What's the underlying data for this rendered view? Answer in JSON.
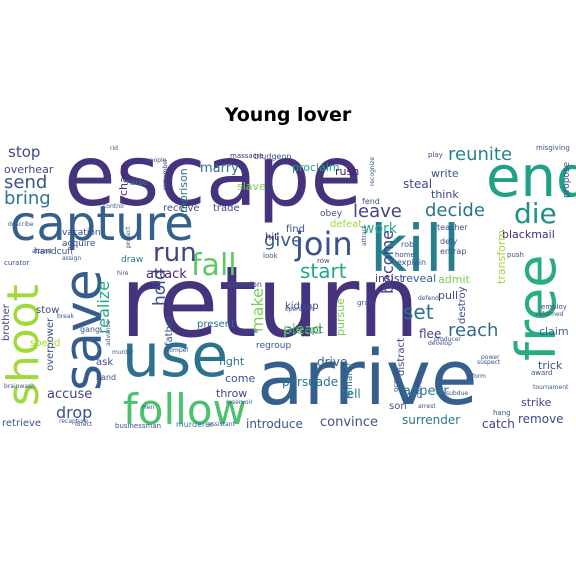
{
  "title": "Young lover",
  "words": [
    {
      "text": "escape",
      "color": "#46337e"
    },
    {
      "text": "return",
      "color": "#46337e"
    },
    {
      "text": "arrive",
      "color": "#355f8d"
    },
    {
      "text": "capture",
      "color": "#355f8d"
    },
    {
      "text": "kill",
      "color": "#277f8e"
    },
    {
      "text": "end",
      "color": "#1fa187"
    },
    {
      "text": "use",
      "color": "#2c728e"
    },
    {
      "text": "follow",
      "color": "#4ac16d"
    },
    {
      "text": "save",
      "color": "#365c8d"
    },
    {
      "text": "shoot",
      "color": "#9fda3a"
    },
    {
      "text": "free",
      "color": "#27ad81"
    },
    {
      "text": "die",
      "color": "#21918c"
    },
    {
      "text": "join",
      "color": "#3b528b"
    },
    {
      "text": "fall",
      "color": "#5ec962"
    },
    {
      "text": "run",
      "color": "#414487"
    },
    {
      "text": "reunite",
      "color": "#26828e"
    },
    {
      "text": "decide",
      "color": "#2c728e"
    },
    {
      "text": "send",
      "color": "#3b528b"
    },
    {
      "text": "bring",
      "color": "#2a788e"
    },
    {
      "text": "stop",
      "color": "#3e4989"
    },
    {
      "text": "start",
      "color": "#22a884"
    },
    {
      "text": "give",
      "color": "#355f8d"
    },
    {
      "text": "leave",
      "color": "#414487"
    },
    {
      "text": "set",
      "color": "#2c728e"
    },
    {
      "text": "work",
      "color": "#27ad81"
    },
    {
      "text": "become",
      "color": "#414487"
    },
    {
      "text": "reach",
      "color": "#2f6c8e"
    },
    {
      "text": "hold",
      "color": "#3b528b"
    },
    {
      "text": "make",
      "color": "#7ad151"
    },
    {
      "text": "realize",
      "color": "#22a884"
    },
    {
      "text": "drop",
      "color": "#3b528b"
    },
    {
      "text": "accuse",
      "color": "#414487"
    },
    {
      "text": "marry",
      "color": "#2c728e"
    },
    {
      "text": "attack",
      "color": "#482878"
    },
    {
      "text": "plead",
      "color": "#7ad151"
    },
    {
      "text": "appear",
      "color": "#2a788e"
    },
    {
      "text": "convince",
      "color": "#3b528b"
    },
    {
      "text": "surrender",
      "color": "#2a788e"
    },
    {
      "text": "catch",
      "color": "#414487"
    },
    {
      "text": "remove",
      "color": "#3e4989"
    },
    {
      "text": "introduce",
      "color": "#3b528b"
    },
    {
      "text": "persuade",
      "color": "#2c728e"
    },
    {
      "text": "drive",
      "color": "#355f8d"
    },
    {
      "text": "tell",
      "color": "#2a788e"
    },
    {
      "text": "flee",
      "color": "#414487"
    },
    {
      "text": "steal",
      "color": "#3e4989"
    },
    {
      "text": "blackmail",
      "color": "#482878"
    },
    {
      "text": "overhear",
      "color": "#3e4989"
    },
    {
      "text": "chase",
      "color": "#482878"
    },
    {
      "text": "imprison",
      "color": "#2c728e"
    },
    {
      "text": "slave",
      "color": "#7ad151"
    },
    {
      "text": "proclaim",
      "color": "#22a884"
    },
    {
      "text": "rush",
      "color": "#481b6d"
    },
    {
      "text": "write",
      "color": "#3b528b"
    },
    {
      "text": "think",
      "color": "#414487"
    },
    {
      "text": "propose",
      "color": "#3b528b"
    },
    {
      "text": "fight",
      "color": "#2c728e"
    },
    {
      "text": "throw",
      "color": "#3e4989"
    },
    {
      "text": "come",
      "color": "#3b528b"
    },
    {
      "text": "accept",
      "color": "#2a788e"
    },
    {
      "text": "insist",
      "color": "#414487"
    },
    {
      "text": "reveal",
      "color": "#355f8d"
    },
    {
      "text": "admit",
      "color": "#7ad151"
    },
    {
      "text": "pull",
      "color": "#414487"
    },
    {
      "text": "transform",
      "color": "#9fda3a"
    },
    {
      "text": "destroy",
      "color": "#3e4989"
    },
    {
      "text": "trick",
      "color": "#3b528b"
    },
    {
      "text": "strike",
      "color": "#414487"
    },
    {
      "text": "claim",
      "color": "#355f8d"
    },
    {
      "text": "distract",
      "color": "#3e4989"
    },
    {
      "text": "pursue",
      "color": "#7ad151"
    },
    {
      "text": "kidnap",
      "color": "#3e4989"
    },
    {
      "text": "hit",
      "color": "#481b6d"
    },
    {
      "text": "find",
      "color": "#3b528b"
    },
    {
      "text": "defeat",
      "color": "#9fda3a"
    },
    {
      "text": "obey",
      "color": "#3b528b"
    },
    {
      "text": "receive",
      "color": "#3b528b"
    },
    {
      "text": "trade",
      "color": "#3e4989"
    },
    {
      "text": "present",
      "color": "#2c728e"
    },
    {
      "text": "ask",
      "color": "#3e4989"
    },
    {
      "text": "father",
      "color": "#3b528b"
    },
    {
      "text": "spend",
      "color": "#9fda3a"
    },
    {
      "text": "retrieve",
      "color": "#3b528b"
    },
    {
      "text": "son",
      "color": "#3b528b"
    },
    {
      "text": "overpower",
      "color": "#3b528b"
    },
    {
      "text": "stow",
      "color": "#414487"
    },
    {
      "text": "brother",
      "color": "#414487"
    },
    {
      "text": "regroup",
      "color": "#3b528b"
    },
    {
      "text": "remarry",
      "color": "#2a788e"
    },
    {
      "text": "acquire",
      "color": "#3e4989"
    },
    {
      "text": "draw",
      "color": "#2a788e"
    },
    {
      "text": "raise",
      "color": "#2a788e"
    },
    {
      "text": "handcuff",
      "color": "#3b528b"
    },
    {
      "text": "vacation",
      "color": "#3e4989"
    },
    {
      "text": "murderer",
      "color": "#2a788e"
    },
    {
      "text": "abandon",
      "color": "#3b528b"
    },
    {
      "text": "gang",
      "color": "#3b528b"
    },
    {
      "text": "hand",
      "color": "#3b528b"
    },
    {
      "text": "businessman",
      "color": "#3b528b"
    },
    {
      "text": "bludgeon",
      "color": "#3b528b"
    },
    {
      "text": "massacre",
      "color": "#482878"
    },
    {
      "text": "misgiving",
      "color": "#3b528b"
    },
    {
      "text": "play",
      "color": "#3b528b"
    },
    {
      "text": "fend",
      "color": "#3b528b"
    },
    {
      "text": "rob",
      "color": "#3b528b"
    },
    {
      "text": "explain",
      "color": "#3b528b"
    },
    {
      "text": "teacher",
      "color": "#3b528b"
    },
    {
      "text": "defy",
      "color": "#3b528b"
    },
    {
      "text": "entrap",
      "color": "#3b528b"
    },
    {
      "text": "push",
      "color": "#3b528b"
    },
    {
      "text": "home",
      "color": "#3b528b"
    },
    {
      "text": "occupy",
      "color": "#3b528b"
    },
    {
      "text": "comply",
      "color": "#3b528b"
    },
    {
      "text": "hang",
      "color": "#3b528b"
    },
    {
      "text": "award",
      "color": "#3b528b"
    },
    {
      "text": "employ",
      "color": "#3b528b"
    },
    {
      "text": "tournament",
      "color": "#3b528b"
    },
    {
      "text": "curator",
      "color": "#3b528b"
    },
    {
      "text": "people",
      "color": "#3b528b"
    },
    {
      "text": "rid",
      "color": "#3b528b"
    },
    {
      "text": "describe",
      "color": "#3b528b"
    },
    {
      "text": "attend",
      "color": "#3b528b"
    },
    {
      "text": "control",
      "color": "#3b528b"
    },
    {
      "text": "assign",
      "color": "#3b528b"
    },
    {
      "text": "row",
      "color": "#3b528b"
    },
    {
      "text": "look",
      "color": "#3b528b"
    },
    {
      "text": "grab",
      "color": "#3b528b"
    },
    {
      "text": "direct",
      "color": "#3b528b"
    },
    {
      "text": "recapture",
      "color": "#3b528b"
    },
    {
      "text": "assistant",
      "color": "#3b528b"
    },
    {
      "text": "arrest",
      "color": "#3b528b"
    },
    {
      "text": "subdue",
      "color": "#3b528b"
    },
    {
      "text": "suspect",
      "color": "#3b528b"
    },
    {
      "text": "form",
      "color": "#3b528b"
    },
    {
      "text": "producer",
      "color": "#3b528b"
    },
    {
      "text": "reformed",
      "color": "#3b528b"
    },
    {
      "text": "brainwash",
      "color": "#3b528b"
    },
    {
      "text": "compel",
      "color": "#3b528b"
    },
    {
      "text": "advance",
      "color": "#3b528b"
    },
    {
      "text": "operation",
      "color": "#3b528b"
    },
    {
      "text": "recognize",
      "color": "#3b528b"
    },
    {
      "text": "attract",
      "color": "#3b528b"
    },
    {
      "text": "protect",
      "color": "#3b528b"
    },
    {
      "text": "remember",
      "color": "#3b528b"
    },
    {
      "text": "develop",
      "color": "#3b528b"
    },
    {
      "text": "power",
      "color": "#3b528b"
    },
    {
      "text": "reservoir",
      "color": "#3b528b"
    },
    {
      "text": "men",
      "color": "#3b528b"
    },
    {
      "text": "break",
      "color": "#3b528b"
    },
    {
      "text": "hire",
      "color": "#3b528b"
    },
    {
      "text": "murder",
      "color": "#3b528b"
    },
    {
      "text": "create",
      "color": "#3b528b"
    },
    {
      "text": "defend",
      "color": "#3b528b"
    }
  ]
}
